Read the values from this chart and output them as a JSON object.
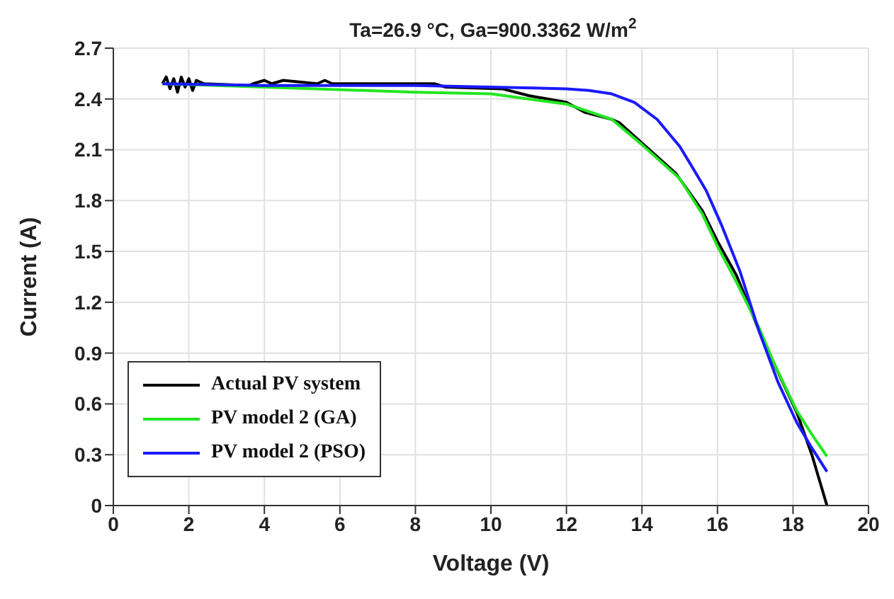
{
  "chart_data": {
    "type": "line",
    "title": "Ta=26.9 °C, Ga=900.3362 W/m$^{2}$",
    "xlabel": "Voltage (V)",
    "ylabel": "Current (A)",
    "xlim": [
      0,
      20
    ],
    "xticks": [
      0,
      2,
      4,
      6,
      8,
      10,
      12,
      14,
      16,
      18,
      20
    ],
    "ylim": [
      0,
      2.7
    ],
    "yticks": [
      0,
      0.3,
      0.6,
      0.9,
      1.2,
      1.5,
      1.8,
      2.1,
      2.4,
      2.7
    ],
    "grid": true,
    "legend": "bottom left",
    "marker": "none",
    "line_style": "solid",
    "series": [
      {
        "name": "Actual PV system",
        "color": "#000000",
        "x": [
          1.3,
          1.4,
          1.5,
          1.6,
          1.7,
          1.8,
          1.9,
          2.0,
          2.1,
          2.2,
          2.4,
          3.6,
          3.7,
          4.0,
          4.2,
          4.5,
          5.4,
          5.6,
          5.8,
          8.5,
          8.8,
          10.3,
          11,
          11.5,
          12,
          12.5,
          13.2,
          13.4,
          14,
          14.9,
          15.6,
          16,
          16.5,
          17.2,
          18.1,
          18.5,
          18.9
        ],
        "values": [
          2.49,
          2.53,
          2.46,
          2.52,
          2.44,
          2.53,
          2.47,
          2.52,
          2.45,
          2.51,
          2.49,
          2.48,
          2.49,
          2.51,
          2.49,
          2.51,
          2.49,
          2.51,
          2.49,
          2.49,
          2.47,
          2.46,
          2.42,
          2.4,
          2.38,
          2.32,
          2.28,
          2.26,
          2.14,
          1.96,
          1.74,
          1.56,
          1.36,
          0.98,
          0.55,
          0.3,
          0
        ]
      },
      {
        "name": "PV model 2 (GA)",
        "color": "#22e622",
        "x": [
          1.3,
          4,
          8,
          10,
          12,
          13.2,
          14,
          15,
          15.6,
          16,
          16.5,
          17.1,
          17.5,
          18.1,
          18.5,
          18.9
        ],
        "values": [
          2.49,
          2.47,
          2.44,
          2.43,
          2.37,
          2.28,
          2.13,
          1.93,
          1.72,
          1.53,
          1.32,
          1.05,
          0.84,
          0.56,
          0.42,
          0.29
        ]
      },
      {
        "name": "PV model 2 (PSO)",
        "color": "#1a1aff",
        "x": [
          1.3,
          4,
          8,
          10,
          12,
          12.6,
          13.2,
          13.8,
          14.4,
          15,
          15.3,
          15.7,
          16.1,
          16.6,
          17.1,
          17.6,
          18.1,
          18.5,
          18.9
        ],
        "values": [
          2.49,
          2.48,
          2.48,
          2.47,
          2.46,
          2.45,
          2.43,
          2.38,
          2.28,
          2.12,
          2.01,
          1.86,
          1.66,
          1.38,
          1.03,
          0.73,
          0.49,
          0.34,
          0.2
        ]
      }
    ]
  }
}
